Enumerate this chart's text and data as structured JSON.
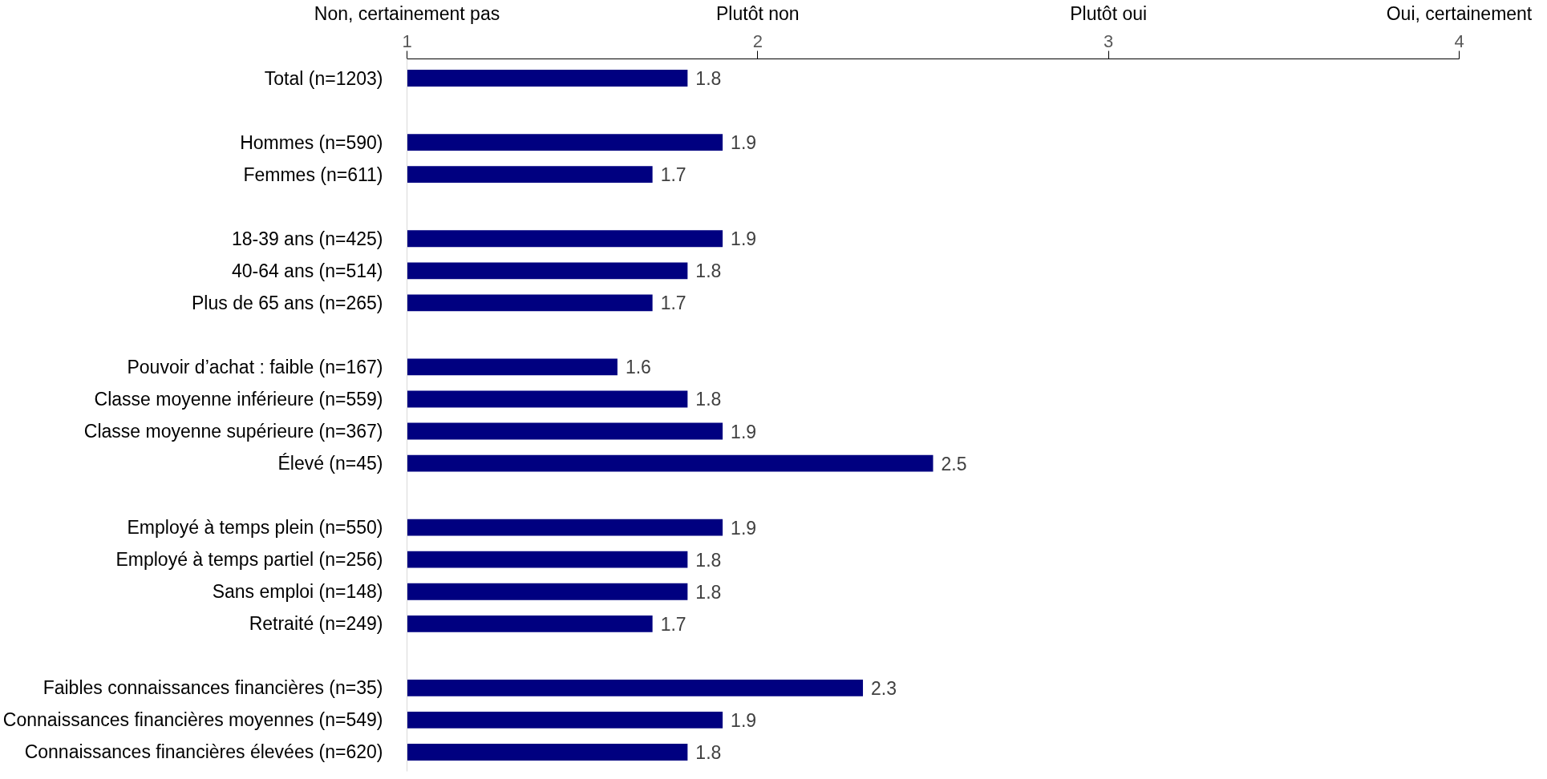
{
  "chart_data": {
    "type": "bar",
    "orientation": "horizontal",
    "categories": [
      "Total (n=1203)",
      null,
      "Hommes (n=590)",
      "Femmes (n=611)",
      null,
      "18-39 ans (n=425)",
      "40-64 ans (n=514)",
      "Plus de 65 ans (n=265)",
      null,
      "Pouvoir d’achat : faible (n=167)",
      "Classe moyenne inférieure (n=559)",
      "Classe moyenne supérieure (n=367)",
      "Élevé (n=45)",
      null,
      "Employé à temps plein (n=550)",
      "Employé à temps partiel (n=256)",
      "Sans emploi (n=148)",
      "Retraité (n=249)",
      null,
      "Faibles connaissances financières (n=35)",
      "Connaissances financières moyennes (n=549)",
      "Connaissances financières élevées (n=620)"
    ],
    "values": [
      1.8,
      null,
      1.9,
      1.7,
      null,
      1.9,
      1.8,
      1.7,
      null,
      1.6,
      1.8,
      1.9,
      2.5,
      null,
      1.9,
      1.8,
      1.8,
      1.7,
      null,
      2.3,
      1.9,
      1.8
    ],
    "color": "#000080",
    "data_labels": true,
    "xlim": [
      1,
      4
    ],
    "xticks": [
      1,
      2,
      3,
      4
    ],
    "annotations": [
      "Non, certainement pas",
      "Plutôt non",
      "Plutôt oui",
      "Oui, certainement"
    ],
    "grid": false
  }
}
